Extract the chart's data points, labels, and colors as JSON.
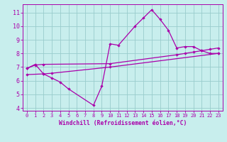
{
  "background_color": "#c8eeed",
  "grid_color": "#99cccc",
  "line_color": "#aa00aa",
  "ylim": [
    3.8,
    11.6
  ],
  "xlim": [
    -0.5,
    23.5
  ],
  "xlabel": "Windchill (Refroidissement éolien,°C)",
  "yticks": [
    4,
    5,
    6,
    7,
    8,
    9,
    10,
    11
  ],
  "xticks": [
    0,
    1,
    2,
    3,
    4,
    5,
    6,
    7,
    8,
    9,
    10,
    11,
    12,
    13,
    14,
    15,
    16,
    17,
    18,
    19,
    20,
    21,
    22,
    23
  ],
  "main_x": [
    0,
    1,
    2,
    3,
    4,
    5,
    8,
    9,
    10,
    11,
    13,
    14,
    15,
    16,
    17,
    18,
    19,
    20,
    21,
    22,
    23
  ],
  "main_y": [
    6.9,
    7.2,
    6.5,
    6.2,
    5.9,
    5.4,
    4.2,
    5.6,
    8.7,
    8.6,
    10.0,
    10.6,
    11.2,
    10.5,
    9.7,
    8.4,
    8.5,
    8.5,
    8.2,
    8.0,
    8.0
  ],
  "upper_x": [
    0,
    1,
    2,
    10,
    18,
    19,
    20,
    21,
    22,
    23
  ],
  "upper_y": [
    6.9,
    7.15,
    7.2,
    7.25,
    7.9,
    8.0,
    8.1,
    8.2,
    8.3,
    8.4
  ],
  "lower_x": [
    0,
    2,
    3,
    10,
    23
  ],
  "lower_y": [
    6.45,
    6.5,
    6.55,
    7.0,
    8.0
  ]
}
